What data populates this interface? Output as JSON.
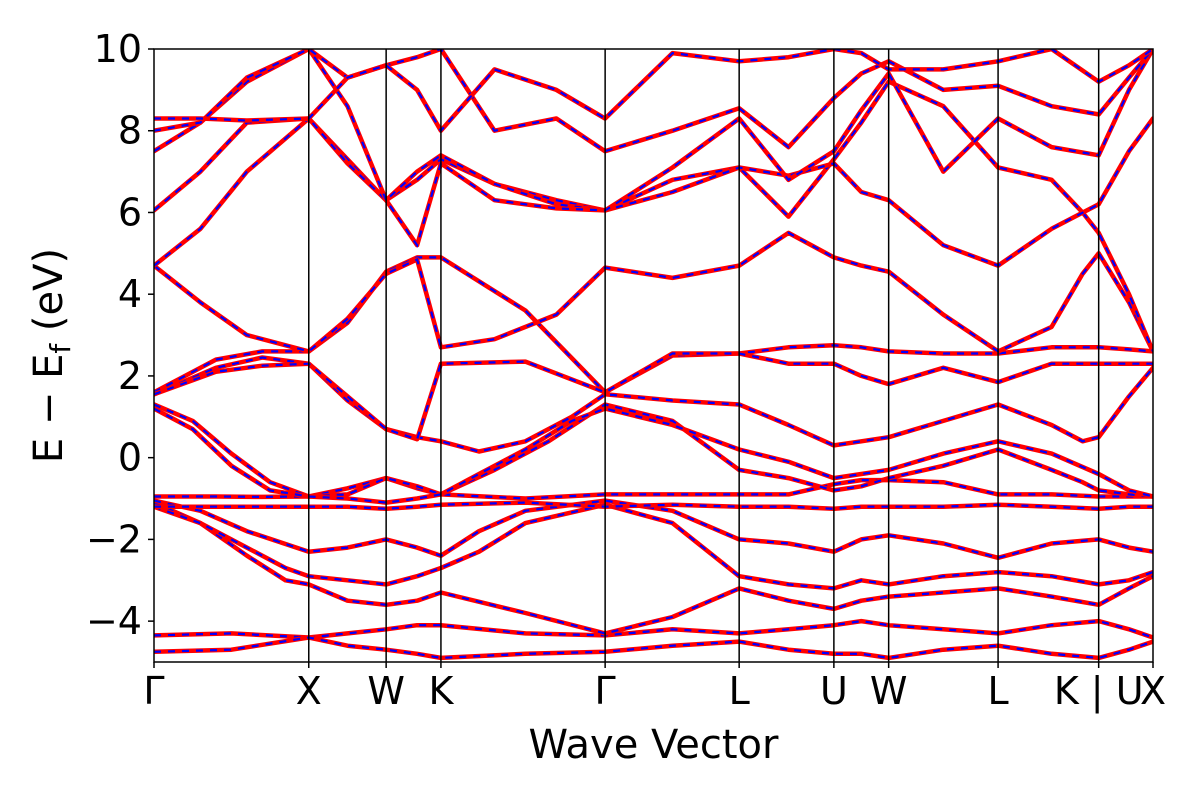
{
  "chart_data": {
    "type": "line",
    "xlabel": "Wave Vector",
    "ylabel": "E − E",
    "ylabel_subscript": "f",
    "ylabel_unit": "(eV)",
    "ylim": [
      -5,
      10
    ],
    "yticks": [
      -4,
      -2,
      0,
      2,
      4,
      6,
      8,
      10
    ],
    "ytick_labels": [
      "−4",
      "−2",
      "0",
      "2",
      "4",
      "6",
      "8",
      "10"
    ],
    "xlim": [
      0,
      6.455
    ],
    "kpoints": [
      {
        "label": "Γ",
        "x": 0.0
      },
      {
        "label": "X",
        "x": 1.0
      },
      {
        "label": "W",
        "x": 1.5
      },
      {
        "label": "K",
        "x": 1.854
      },
      {
        "label": "Γ",
        "x": 2.915
      },
      {
        "label": "L",
        "x": 3.781
      },
      {
        "label": "U",
        "x": 4.393
      },
      {
        "label": "W",
        "x": 4.747
      },
      {
        "label": "L",
        "x": 5.454
      },
      {
        "label": "K | U",
        "x": 6.104
      },
      {
        "label": "X",
        "x": 6.455
      }
    ],
    "grid": false,
    "legend": "none",
    "series_style": [
      {
        "color": "#ff0000",
        "style": "solid"
      },
      {
        "color": "#0000ff",
        "style": "dashed"
      }
    ],
    "bands": [
      {
        "x": [
          0,
          0.5,
          1,
          1.25,
          1.5,
          1.7,
          1.854,
          2.4,
          2.915,
          3.35,
          3.781,
          4.1,
          4.393,
          4.57,
          4.747,
          5.1,
          5.454,
          5.8,
          6.104,
          6.3,
          6.455
        ],
        "y": [
          -4.35,
          -4.3,
          -4.4,
          -4.3,
          -4.2,
          -4.1,
          -4.1,
          -4.3,
          -4.35,
          -4.2,
          -4.3,
          -4.2,
          -4.1,
          -4.0,
          -4.1,
          -4.2,
          -4.3,
          -4.1,
          -4.0,
          -4.2,
          -4.4
        ]
      },
      {
        "x": [
          0,
          0.5,
          1,
          1.25,
          1.5,
          1.7,
          1.854,
          2.4,
          2.915,
          3.35,
          3.781,
          4.1,
          4.393,
          4.57,
          4.747,
          5.1,
          5.454,
          5.8,
          6.104,
          6.3,
          6.455
        ],
        "y": [
          -4.75,
          -4.7,
          -4.4,
          -4.6,
          -4.7,
          -4.8,
          -4.9,
          -4.8,
          -4.75,
          -4.6,
          -4.5,
          -4.7,
          -4.8,
          -4.8,
          -4.9,
          -4.7,
          -4.6,
          -4.8,
          -4.9,
          -4.7,
          -4.5
        ]
      },
      {
        "x": [
          0,
          0.3,
          0.6,
          0.85,
          1,
          1.25,
          1.5,
          1.7,
          1.854,
          2.4,
          2.915,
          3.35,
          3.781,
          4.1,
          4.393,
          4.57,
          4.747,
          5.1,
          5.454,
          5.8,
          6.104,
          6.3,
          6.455
        ],
        "y": [
          -1.1,
          -1.6,
          -2.4,
          -3.0,
          -3.1,
          -3.5,
          -3.6,
          -3.5,
          -3.3,
          -3.8,
          -4.3,
          -3.9,
          -3.2,
          -3.5,
          -3.7,
          -3.5,
          -3.4,
          -3.3,
          -3.2,
          -3.4,
          -3.6,
          -3.2,
          -2.9
        ]
      },
      {
        "x": [
          0,
          0.3,
          0.6,
          0.85,
          1,
          1.25,
          1.5,
          1.7,
          1.854,
          2.1,
          2.4,
          2.915,
          3.35,
          3.781,
          4.1,
          4.393,
          4.57,
          4.747,
          5.1,
          5.454,
          5.8,
          6.104,
          6.3,
          6.455
        ],
        "y": [
          -1.2,
          -1.6,
          -2.2,
          -2.7,
          -2.9,
          -3.0,
          -3.1,
          -2.9,
          -2.7,
          -2.3,
          -1.6,
          -1.15,
          -1.6,
          -2.9,
          -3.1,
          -3.2,
          -3.0,
          -3.1,
          -2.9,
          -2.8,
          -2.9,
          -3.1,
          -3.0,
          -2.8
        ]
      },
      {
        "x": [
          0,
          0.3,
          0.6,
          1,
          1.25,
          1.5,
          1.7,
          1.854,
          2.1,
          2.4,
          2.915,
          3.35,
          3.781,
          4.1,
          4.393,
          4.57,
          4.747,
          5.1,
          5.454,
          5.8,
          6.104,
          6.3,
          6.455
        ],
        "y": [
          -1.05,
          -1.3,
          -1.8,
          -2.3,
          -2.2,
          -2.0,
          -2.2,
          -2.4,
          -1.8,
          -1.3,
          -1.05,
          -1.3,
          -2.0,
          -2.1,
          -2.3,
          -2.0,
          -1.9,
          -2.1,
          -2.45,
          -2.1,
          -2.0,
          -2.2,
          -2.3
        ]
      },
      {
        "x": [
          0,
          0.4,
          0.7,
          1,
          1.25,
          1.5,
          1.7,
          1.854,
          2.4,
          2.915,
          3.35,
          3.781,
          4.1,
          4.393,
          4.57,
          4.747,
          5.1,
          5.454,
          5.8,
          6.104,
          6.3,
          6.455
        ],
        "y": [
          -0.95,
          -0.95,
          -0.96,
          -0.95,
          -0.75,
          -0.5,
          -0.75,
          -0.9,
          -1.0,
          -0.9,
          -0.9,
          -0.9,
          -0.9,
          -0.65,
          -0.55,
          -0.55,
          -0.6,
          -0.9,
          -0.9,
          -0.95,
          -0.95,
          -0.95
        ]
      },
      {
        "x": [
          0,
          0.5,
          1,
          1.25,
          1.5,
          1.7,
          1.854,
          2.4,
          2.915,
          3.35,
          3.781,
          4.1,
          4.393,
          4.57,
          4.747,
          5.1,
          5.454,
          5.8,
          6.104,
          6.3,
          6.455
        ],
        "y": [
          -1.2,
          -1.2,
          -1.2,
          -1.2,
          -1.25,
          -1.2,
          -1.15,
          -1.1,
          -1.2,
          -1.15,
          -1.2,
          -1.2,
          -1.25,
          -1.2,
          -1.2,
          -1.2,
          -1.15,
          -1.2,
          -1.25,
          -1.2,
          -1.2
        ]
      },
      {
        "x": [
          0,
          0.25,
          0.5,
          0.75,
          1,
          1.25,
          1.5,
          1.7,
          1.854,
          2.2,
          2.55,
          2.915,
          3.35,
          3.781,
          4.1,
          4.393,
          4.57,
          4.747,
          5.1,
          5.454,
          5.8,
          6.0,
          6.104,
          6.3,
          6.455
        ],
        "y": [
          1.3,
          0.9,
          0.1,
          -0.6,
          -0.95,
          -0.9,
          -0.5,
          -0.7,
          -0.9,
          -0.3,
          0.4,
          1.3,
          0.9,
          -0.3,
          -0.5,
          -0.8,
          -0.7,
          -0.5,
          -0.2,
          0.2,
          -0.3,
          -0.6,
          -0.8,
          -0.9,
          -0.95
        ]
      },
      {
        "x": [
          0,
          0.25,
          0.5,
          0.75,
          1,
          1.25,
          1.5,
          1.7,
          1.854,
          2.1,
          2.4,
          2.7,
          2.915,
          3.35,
          3.781,
          4.1,
          4.393,
          4.57,
          4.747,
          5.1,
          5.454,
          5.8,
          6.104,
          6.3,
          6.455
        ],
        "y": [
          1.2,
          0.7,
          -0.2,
          -0.8,
          -0.95,
          -1.0,
          -1.1,
          -1.0,
          -0.9,
          -0.4,
          0.2,
          0.9,
          1.2,
          0.8,
          0.2,
          -0.1,
          -0.5,
          -0.4,
          -0.3,
          0.1,
          0.4,
          0.1,
          -0.4,
          -0.8,
          -0.95
        ]
      },
      {
        "x": [
          0,
          0.4,
          0.7,
          1,
          1.25,
          1.5,
          1.7,
          1.854,
          2.1,
          2.4,
          2.7,
          2.915,
          3.35,
          3.781,
          4.1,
          4.393,
          4.57,
          4.747,
          5.1,
          5.454,
          5.8,
          6.0,
          6.104,
          6.3,
          6.455
        ],
        "y": [
          1.55,
          2.2,
          2.45,
          2.3,
          1.4,
          0.7,
          0.5,
          0.4,
          0.15,
          0.4,
          1.0,
          1.55,
          1.4,
          1.3,
          0.8,
          0.3,
          0.4,
          0.5,
          0.9,
          1.3,
          0.8,
          0.4,
          0.5,
          1.5,
          2.2
        ]
      },
      {
        "x": [
          0,
          0.4,
          0.7,
          1,
          1.25,
          1.5,
          1.7,
          1.854,
          2.4,
          2.915,
          3.35,
          3.781,
          4.1,
          4.393,
          4.57,
          4.747,
          5.1,
          5.454,
          5.8,
          6.104,
          6.3,
          6.455
        ],
        "y": [
          1.6,
          2.4,
          2.6,
          2.6,
          3.3,
          4.55,
          4.9,
          4.9,
          3.6,
          1.6,
          2.5,
          2.55,
          2.7,
          2.75,
          2.7,
          2.6,
          2.55,
          2.55,
          2.7,
          2.7,
          2.65,
          2.6
        ]
      },
      {
        "x": [
          0,
          0.4,
          0.7,
          1,
          1.25,
          1.5,
          1.7,
          1.854,
          2.4,
          2.915,
          3.35,
          3.781,
          4.1,
          4.393,
          4.57,
          4.747,
          5.1,
          5.454,
          5.8,
          6.104,
          6.3,
          6.455
        ],
        "y": [
          1.55,
          2.1,
          2.25,
          2.3,
          1.5,
          0.7,
          0.45,
          2.3,
          2.35,
          1.6,
          2.55,
          2.55,
          2.3,
          2.3,
          2.0,
          1.8,
          2.2,
          1.85,
          2.3,
          2.3,
          2.3,
          2.3
        ]
      },
      {
        "x": [
          0,
          0.3,
          0.6,
          1,
          1.25,
          1.5,
          1.7,
          1.854,
          2.2,
          2.6,
          2.915,
          3.35,
          3.781,
          4.1,
          4.393,
          4.57,
          4.747,
          5.1,
          5.454,
          5.8,
          6.0,
          6.104,
          6.3,
          6.455
        ],
        "y": [
          4.7,
          3.8,
          3.0,
          2.6,
          3.4,
          4.5,
          4.85,
          2.7,
          2.9,
          3.5,
          4.65,
          4.4,
          4.7,
          5.5,
          4.9,
          4.7,
          4.55,
          3.5,
          2.6,
          3.2,
          4.5,
          5.0,
          3.8,
          2.6
        ]
      },
      {
        "x": [
          0,
          0.3,
          0.6,
          1,
          1.25,
          1.5,
          1.7,
          1.854,
          2.2,
          2.6,
          2.915,
          3.35,
          3.781,
          4.1,
          4.393,
          4.57,
          4.747,
          5.1,
          5.454,
          5.8,
          6.0,
          6.104,
          6.3,
          6.455
        ],
        "y": [
          4.7,
          5.6,
          7.0,
          8.3,
          7.3,
          6.3,
          6.8,
          7.3,
          6.7,
          6.3,
          6.05,
          6.8,
          7.1,
          5.9,
          7.3,
          8.2,
          9.2,
          8.6,
          7.1,
          6.8,
          6.0,
          5.5,
          4.0,
          2.6
        ]
      },
      {
        "x": [
          0,
          0.3,
          0.6,
          1,
          1.25,
          1.5,
          1.7,
          1.854,
          2.2,
          2.6,
          2.915,
          3.35,
          3.781,
          4.1,
          4.393,
          4.57,
          4.747,
          5.1,
          5.454,
          5.8,
          6.104,
          6.3,
          6.455
        ],
        "y": [
          6.05,
          7.0,
          8.2,
          8.3,
          7.2,
          6.3,
          7.0,
          7.4,
          6.7,
          6.2,
          6.05,
          6.5,
          7.1,
          6.9,
          7.2,
          6.5,
          6.3,
          5.2,
          4.7,
          5.6,
          6.2,
          7.5,
          8.3
        ]
      },
      {
        "x": [
          0,
          0.3,
          0.6,
          1,
          1.25,
          1.5,
          1.7,
          1.854,
          2.2,
          2.6,
          2.915,
          3.35,
          3.781,
          4.1,
          4.393,
          4.57,
          4.747,
          5.1,
          5.454,
          5.8,
          6.104,
          6.3,
          6.455
        ],
        "y": [
          7.5,
          8.2,
          9.2,
          10.0,
          8.6,
          6.3,
          5.2,
          7.2,
          6.3,
          6.1,
          6.05,
          7.1,
          8.3,
          6.8,
          7.5,
          8.5,
          9.4,
          7.0,
          8.3,
          7.6,
          7.4,
          9.0,
          10.0
        ]
      },
      {
        "x": [
          0,
          0.3,
          0.6,
          1,
          1.25,
          1.5,
          1.7,
          1.854,
          2.2,
          2.6,
          2.915,
          3.35,
          3.781,
          4.1,
          4.393,
          4.57,
          4.747,
          5.1,
          5.454,
          5.8,
          6.104,
          6.3,
          6.455
        ],
        "y": [
          8.0,
          8.2,
          9.3,
          10.0,
          9.3,
          9.6,
          9.8,
          10.0,
          8.0,
          8.3,
          7.5,
          8.0,
          8.55,
          7.6,
          8.8,
          9.4,
          9.7,
          9.0,
          9.1,
          8.6,
          8.4,
          9.3,
          10.0
        ]
      },
      {
        "x": [
          0,
          0.3,
          0.6,
          1,
          1.25,
          1.5,
          1.7,
          1.854,
          2.2,
          2.6,
          2.915,
          3.35,
          3.781,
          4.1,
          4.393,
          4.57,
          4.747,
          5.1,
          5.454,
          5.8,
          6.104,
          6.3,
          6.455
        ],
        "y": [
          8.3,
          8.3,
          8.25,
          8.3,
          9.3,
          9.6,
          9.0,
          8.0,
          9.5,
          9.0,
          8.3,
          9.9,
          9.7,
          9.8,
          10.0,
          9.9,
          9.5,
          9.5,
          9.7,
          10.0,
          9.2,
          9.6,
          10.0
        ]
      }
    ]
  }
}
